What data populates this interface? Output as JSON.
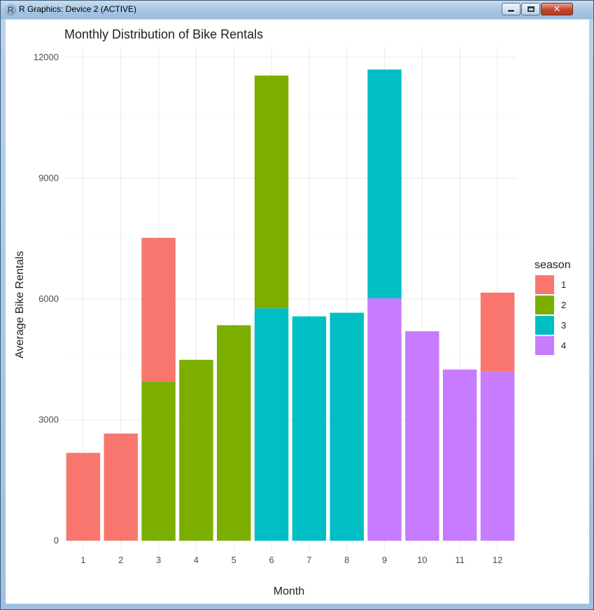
{
  "window": {
    "title": "R Graphics: Device 2 (ACTIVE)",
    "app_icon_letter": "R",
    "close_glyph": "✕"
  },
  "chart_data": {
    "type": "bar",
    "stacked": true,
    "title": "Monthly Distribution of Bike Rentals",
    "xlabel": "Month",
    "ylabel": "Average Bike Rentals",
    "categories": [
      "1",
      "2",
      "3",
      "4",
      "5",
      "6",
      "7",
      "8",
      "9",
      "10",
      "11",
      "12"
    ],
    "ylim": [
      0,
      12300
    ],
    "yticks": [
      0,
      3000,
      6000,
      9000,
      12000
    ],
    "yticks_labels": [
      "0",
      "3000",
      "6000",
      "9000",
      "12000"
    ],
    "grid": true,
    "legend": {
      "title": "season",
      "placement": "right"
    },
    "series": [
      {
        "name": "1",
        "color": "#F8766D",
        "values": [
          2180,
          2660,
          3570,
          0,
          0,
          0,
          0,
          0,
          0,
          0,
          0,
          1950
        ]
      },
      {
        "name": "2",
        "color": "#7CAE00",
        "values": [
          0,
          0,
          3950,
          4490,
          5350,
          5780,
          0,
          0,
          0,
          0,
          0,
          0
        ]
      },
      {
        "name": "3",
        "color": "#00BFC4",
        "values": [
          0,
          0,
          0,
          0,
          0,
          5770,
          5570,
          5660,
          5680,
          0,
          0,
          0
        ]
      },
      {
        "name": "4",
        "color": "#C77CFF",
        "values": [
          0,
          0,
          0,
          0,
          0,
          0,
          0,
          0,
          6020,
          5200,
          4250,
          4210
        ]
      }
    ],
    "stack_order_bottom_to_top": [
      "4",
      "3",
      "2",
      "1"
    ]
  }
}
